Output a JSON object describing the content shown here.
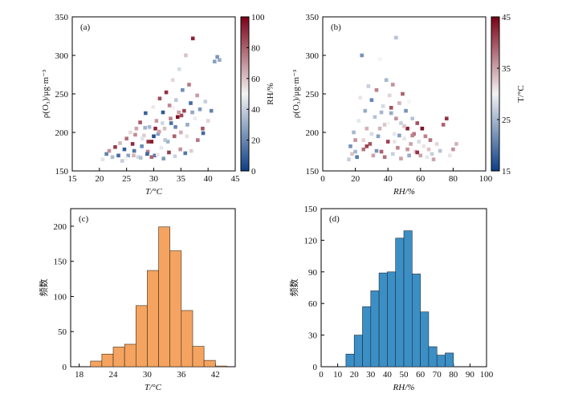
{
  "figure": {
    "colors": {
      "hist_c": "#f4a460",
      "hist_c_edge": "#3a2a1a",
      "hist_d": "#3c8fc4",
      "hist_d_edge": "#1a2a3a",
      "cmap_low": "#0b3f86",
      "cmap_mid": "#f3f3f3",
      "cmap_high": "#7a0016"
    }
  },
  "chart_data": [
    {
      "type": "scatter",
      "panel_label": "(a)",
      "xlabel": "T/°C",
      "ylabel": "ρ(O₃)/μg·m⁻³",
      "xlim": [
        15,
        45
      ],
      "ylim": [
        150,
        350
      ],
      "xticks": [
        15,
        20,
        25,
        30,
        35,
        40,
        45
      ],
      "yticks": [
        150,
        200,
        250,
        300,
        350
      ],
      "colorbar": {
        "label": "RH/%",
        "range": [
          0,
          100
        ],
        "ticks": [
          0,
          20,
          40,
          60,
          80,
          100
        ]
      },
      "points": [
        [
          20.6,
          165,
          46
        ],
        [
          21.3,
          172,
          18
        ],
        [
          21.8,
          176,
          70
        ],
        [
          22.4,
          168,
          35
        ],
        [
          22.9,
          181,
          88
        ],
        [
          23.5,
          170,
          12
        ],
        [
          23.8,
          186,
          62
        ],
        [
          24.2,
          163,
          40
        ],
        [
          24.6,
          178,
          9
        ],
        [
          25.0,
          192,
          77
        ],
        [
          25.3,
          170,
          28
        ],
        [
          25.7,
          200,
          55
        ],
        [
          26.1,
          185,
          91
        ],
        [
          26.4,
          176,
          15
        ],
        [
          26.8,
          205,
          66
        ],
        [
          27.1,
          168,
          43
        ],
        [
          27.5,
          213,
          82
        ],
        [
          27.8,
          182,
          21
        ],
        [
          28.2,
          196,
          58
        ],
        [
          28.5,
          225,
          10
        ],
        [
          28.9,
          175,
          74
        ],
        [
          29.2,
          207,
          34
        ],
        [
          29.6,
          188,
          95
        ],
        [
          29.9,
          233,
          52
        ],
        [
          30.2,
          170,
          17
        ],
        [
          30.5,
          215,
          69
        ],
        [
          30.8,
          198,
          26
        ],
        [
          31.1,
          244,
          84
        ],
        [
          31.4,
          180,
          47
        ],
        [
          31.7,
          226,
          8
        ],
        [
          32.0,
          205,
          61
        ],
        [
          32.3,
          252,
          90
        ],
        [
          32.6,
          188,
          32
        ],
        [
          32.9,
          235,
          72
        ],
        [
          33.2,
          212,
          14
        ],
        [
          33.5,
          268,
          56
        ],
        [
          33.8,
          195,
          80
        ],
        [
          34.1,
          242,
          38
        ],
        [
          34.4,
          220,
          97
        ],
        [
          34.7,
          282,
          44
        ],
        [
          35.0,
          200,
          64
        ],
        [
          35.3,
          255,
          22
        ],
        [
          35.6,
          228,
          86
        ],
        [
          35.9,
          300,
          60
        ],
        [
          36.2,
          210,
          30
        ],
        [
          36.5,
          262,
          75
        ],
        [
          36.8,
          238,
          12
        ],
        [
          37.2,
          322,
          93
        ],
        [
          37.6,
          218,
          48
        ],
        [
          38.0,
          248,
          68
        ],
        [
          38.5,
          230,
          25
        ],
        [
          39.0,
          205,
          83
        ],
        [
          39.5,
          240,
          40
        ],
        [
          40.0,
          215,
          57
        ],
        [
          40.6,
          228,
          19
        ],
        [
          41.2,
          292,
          27
        ],
        [
          41.7,
          298,
          24
        ],
        [
          42.1,
          294,
          30
        ],
        [
          24.9,
          166,
          50
        ],
        [
          26.3,
          170,
          63
        ],
        [
          27.6,
          167,
          36
        ],
        [
          28.8,
          172,
          11
        ],
        [
          29.6,
          168,
          79
        ],
        [
          30.7,
          171,
          53
        ],
        [
          31.8,
          166,
          25
        ],
        [
          32.8,
          174,
          88
        ],
        [
          33.9,
          169,
          41
        ],
        [
          34.9,
          178,
          70
        ],
        [
          35.8,
          173,
          16
        ],
        [
          36.9,
          176,
          58
        ],
        [
          27.9,
          192,
          46
        ],
        [
          29.0,
          188,
          90
        ],
        [
          30.0,
          195,
          5
        ],
        [
          31.0,
          201,
          66
        ],
        [
          32.1,
          190,
          37
        ],
        [
          33.1,
          218,
          73
        ],
        [
          34.0,
          207,
          20
        ],
        [
          35.1,
          222,
          85
        ],
        [
          36.1,
          195,
          54
        ],
        [
          37.1,
          226,
          29
        ],
        [
          38.1,
          190,
          76
        ],
        [
          39.1,
          199,
          12
        ],
        [
          33.6,
          232,
          50
        ],
        [
          34.6,
          226,
          67
        ],
        [
          31.6,
          212,
          42
        ],
        [
          30.3,
          205,
          92
        ],
        [
          28.4,
          206,
          33
        ],
        [
          26.6,
          197,
          71
        ]
      ]
    },
    {
      "type": "scatter",
      "panel_label": "(b)",
      "xlabel": "RH/%",
      "ylabel": "ρ(O₃)/μg·m⁻³",
      "xlim": [
        0,
        100
      ],
      "ylim": [
        150,
        350
      ],
      "xticks": [
        0,
        20,
        40,
        60,
        80,
        100
      ],
      "yticks": [
        150,
        200,
        250,
        300,
        350
      ],
      "colorbar": {
        "label": "T/°C",
        "range": [
          15,
          45
        ],
        "ticks": [
          15,
          25,
          35,
          45
        ]
      },
      "points": [
        [
          16,
          165,
          27
        ],
        [
          17,
          182,
          22
        ],
        [
          18,
          172,
          33
        ],
        [
          19,
          200,
          25
        ],
        [
          20,
          190,
          36
        ],
        [
          21,
          168,
          20
        ],
        [
          22,
          215,
          29
        ],
        [
          23,
          245,
          31
        ],
        [
          24,
          300,
          22
        ],
        [
          25,
          178,
          38
        ],
        [
          26,
          228,
          24
        ],
        [
          27,
          205,
          34
        ],
        [
          28,
          260,
          27
        ],
        [
          29,
          185,
          40
        ],
        [
          30,
          242,
          21
        ],
        [
          31,
          170,
          35
        ],
        [
          32,
          220,
          26
        ],
        [
          33,
          255,
          37
        ],
        [
          34,
          195,
          23
        ],
        [
          35,
          295,
          30
        ],
        [
          36,
          175,
          39
        ],
        [
          37,
          234,
          28
        ],
        [
          38,
          210,
          33
        ],
        [
          39,
          268,
          25
        ],
        [
          40,
          188,
          41
        ],
        [
          41,
          248,
          32
        ],
        [
          42,
          225,
          24
        ],
        [
          43,
          262,
          36
        ],
        [
          44,
          198,
          29
        ],
        [
          45,
          323,
          26
        ],
        [
          46,
          180,
          37
        ],
        [
          47,
          238,
          34
        ],
        [
          48,
          212,
          27
        ],
        [
          49,
          250,
          39
        ],
        [
          50,
          192,
          31
        ],
        [
          51,
          228,
          22
        ],
        [
          52,
          205,
          43
        ],
        [
          53,
          240,
          30
        ],
        [
          54,
          185,
          35
        ],
        [
          55,
          218,
          26
        ],
        [
          56,
          198,
          38
        ],
        [
          57,
          175,
          33
        ],
        [
          58,
          212,
          40
        ],
        [
          59,
          188,
          28
        ],
        [
          60,
          170,
          35
        ],
        [
          61,
          205,
          44
        ],
        [
          62,
          182,
          31
        ],
        [
          63,
          195,
          37
        ],
        [
          64,
          168,
          29
        ],
        [
          65,
          178,
          33
        ],
        [
          66,
          190,
          38
        ],
        [
          67,
          172,
          27
        ],
        [
          68,
          165,
          35
        ],
        [
          70,
          185,
          32
        ],
        [
          72,
          176,
          26
        ],
        [
          74,
          210,
          39
        ],
        [
          76,
          218,
          42
        ],
        [
          78,
          170,
          31
        ],
        [
          80,
          178,
          36
        ],
        [
          82,
          185,
          34
        ],
        [
          20,
          175,
          25
        ],
        [
          25,
          190,
          32
        ],
        [
          30,
          198,
          28
        ],
        [
          35,
          205,
          34
        ],
        [
          40,
          212,
          30
        ],
        [
          45,
          218,
          36
        ],
        [
          50,
          208,
          33
        ],
        [
          55,
          196,
          37
        ],
        [
          27,
          182,
          41
        ],
        [
          33,
          176,
          22
        ],
        [
          38,
          168,
          38
        ],
        [
          43,
          172,
          27
        ],
        [
          48,
          166,
          35
        ],
        [
          53,
          170,
          24
        ],
        [
          58,
          174,
          42
        ],
        [
          44,
          188,
          31
        ],
        [
          36,
          226,
          25
        ],
        [
          42,
          232,
          40
        ],
        [
          47,
          196,
          23
        ],
        [
          52,
          178,
          36
        ]
      ]
    },
    {
      "type": "bar",
      "panel_label": "(c)",
      "xlabel": "T/°C",
      "ylabel": "频数",
      "xlim": [
        16.5,
        45.5
      ],
      "ylim": [
        0,
        225
      ],
      "xticks": [
        18,
        24,
        30,
        36,
        42
      ],
      "yticks": [
        0,
        50,
        100,
        150,
        200
      ],
      "bin_width": 2,
      "bin_starts": [
        20,
        22,
        24,
        26,
        28,
        30,
        32,
        34,
        36,
        38,
        40,
        42
      ],
      "values": [
        8,
        18,
        28,
        32,
        87,
        137,
        199,
        165,
        80,
        29,
        9,
        1
      ]
    },
    {
      "type": "bar",
      "panel_label": "(d)",
      "xlabel": "RH/%",
      "ylabel": "频数",
      "xlim": [
        0,
        100
      ],
      "ylim": [
        0,
        150
      ],
      "xticks": [
        0,
        10,
        20,
        30,
        40,
        50,
        60,
        70,
        80,
        90,
        100
      ],
      "yticks": [
        0,
        30,
        60,
        90,
        120,
        150
      ],
      "bin_width": 5,
      "bin_starts": [
        15,
        20,
        25,
        30,
        35,
        40,
        45,
        50,
        55,
        60,
        65,
        70,
        75
      ],
      "values": [
        12,
        30,
        57,
        72,
        89,
        90,
        122,
        129,
        88,
        52,
        19,
        11,
        13
      ]
    }
  ]
}
